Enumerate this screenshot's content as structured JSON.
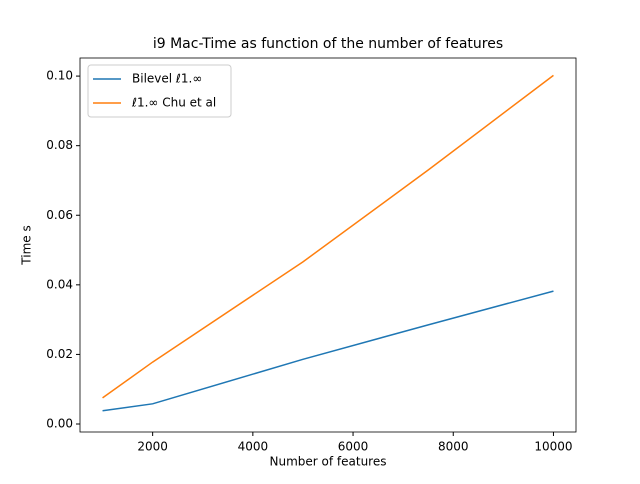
{
  "chart_data": {
    "type": "line",
    "title": "i9 Mac-Time as function of the number of features",
    "x_label": "Number of features",
    "y_label": "Time  s",
    "x": [
      1000,
      2000,
      5000,
      7500,
      10000
    ],
    "series": [
      {
        "name": "Bilevel ℓ1.∞",
        "color": "#1f77b4",
        "values": [
          0.0038,
          0.0058,
          0.0186,
          0.0285,
          0.0382
        ]
      },
      {
        "name": "ℓ1.∞ Chu et al",
        "color": "#ff7f0e",
        "values": [
          0.0075,
          0.0178,
          0.0466,
          0.073,
          0.1002
        ]
      }
    ],
    "xlim": [
      550,
      10450
    ],
    "ylim": [
      -0.0023,
      0.1052
    ],
    "xticks": [
      2000,
      4000,
      6000,
      8000,
      10000
    ],
    "yticks": [
      {
        "value": 0,
        "label": "0.00"
      },
      {
        "value": 0.02,
        "label": "0.02"
      },
      {
        "value": 0.04,
        "label": "0.04"
      },
      {
        "value": 0.06,
        "label": "0.06"
      },
      {
        "value": 0.08,
        "label": "0.08"
      },
      {
        "value": 0.1,
        "label": "0.10"
      }
    ],
    "legend": "upper left",
    "grid": false
  }
}
